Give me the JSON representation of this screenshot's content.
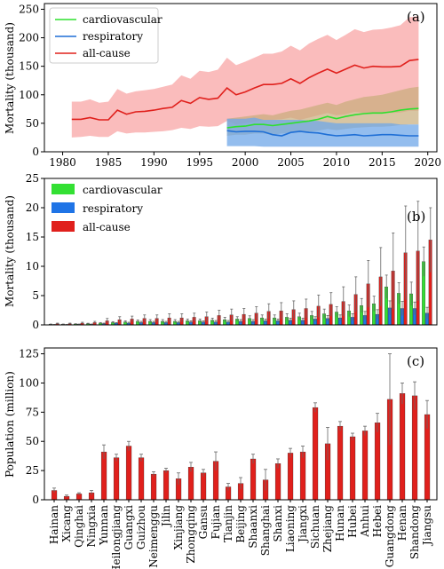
{
  "chart_data": [
    {
      "panel": "(a)",
      "type": "line",
      "ylabel": "Mortality (thousand)",
      "xlim": [
        1978,
        2021
      ],
      "ylim": [
        0,
        260
      ],
      "xticks": [
        1980,
        1985,
        1990,
        1995,
        2000,
        2005,
        2010,
        2015,
        2020
      ],
      "yticks": [
        0,
        50,
        100,
        150,
        200,
        250
      ],
      "legend_position": "top-left",
      "colors": {
        "cardiovascular": "#2ee02e",
        "respiratory": "#1f6fd6",
        "all-cause": "#e0201c",
        "allcause_band": "#f8a5a5",
        "cardio_band": "#c8ad7a",
        "resp_band": "#6fa7e8",
        "overlap_band": "#7a84a0"
      },
      "series": [
        {
          "name": "all-cause",
          "x": [
            1981,
            1982,
            1983,
            1984,
            1985,
            1986,
            1987,
            1988,
            1989,
            1990,
            1991,
            1992,
            1993,
            1994,
            1995,
            1996,
            1997,
            1998,
            1999,
            2000,
            2001,
            2002,
            2003,
            2004,
            2005,
            2006,
            2007,
            2008,
            2009,
            2010,
            2011,
            2012,
            2013,
            2014,
            2015,
            2016,
            2017,
            2018,
            2019
          ],
          "values": [
            57,
            57,
            60,
            56,
            56,
            73,
            66,
            70,
            71,
            73,
            76,
            78,
            90,
            85,
            95,
            92,
            94,
            112,
            100,
            105,
            112,
            118,
            118,
            120,
            128,
            120,
            130,
            138,
            145,
            138,
            145,
            152,
            147,
            150,
            149,
            149,
            150,
            160,
            162
          ],
          "upper": [
            88,
            88,
            92,
            86,
            88,
            110,
            102,
            106,
            108,
            110,
            114,
            118,
            134,
            128,
            142,
            140,
            144,
            165,
            152,
            158,
            165,
            172,
            172,
            176,
            186,
            178,
            190,
            198,
            205,
            196,
            205,
            215,
            210,
            214,
            215,
            218,
            222,
            236,
            238
          ],
          "lower": [
            25,
            26,
            28,
            26,
            26,
            36,
            32,
            34,
            34,
            35,
            36,
            38,
            42,
            40,
            45,
            44,
            45,
            54,
            48,
            50,
            53,
            56,
            56,
            57,
            60,
            56,
            60,
            64,
            68,
            64,
            66,
            70,
            68,
            69,
            68,
            68,
            69,
            72,
            72
          ]
        },
        {
          "name": "cardiovascular",
          "x": [
            1998,
            1999,
            2000,
            2001,
            2002,
            2003,
            2004,
            2005,
            2006,
            2007,
            2008,
            2009,
            2010,
            2011,
            2012,
            2013,
            2014,
            2015,
            2016,
            2017,
            2018,
            2019
          ],
          "values": [
            42,
            44,
            45,
            48,
            48,
            46,
            48,
            50,
            52,
            54,
            57,
            62,
            58,
            62,
            65,
            67,
            68,
            68,
            70,
            73,
            75,
            76
          ],
          "upper": [
            58,
            60,
            62,
            64,
            66,
            64,
            68,
            72,
            74,
            78,
            82,
            86,
            82,
            88,
            92,
            96,
            98,
            100,
            104,
            108,
            112,
            114
          ],
          "lower": [
            28,
            30,
            30,
            32,
            32,
            30,
            32,
            33,
            34,
            35,
            37,
            40,
            38,
            40,
            42,
            43,
            44,
            44,
            45,
            47,
            48,
            48
          ]
        },
        {
          "name": "respiratory",
          "x": [
            1998,
            1999,
            2000,
            2001,
            2002,
            2003,
            2004,
            2005,
            2006,
            2007,
            2008,
            2009,
            2010,
            2011,
            2012,
            2013,
            2014,
            2015,
            2016,
            2017,
            2018,
            2019
          ],
          "values": [
            37,
            35,
            36,
            36,
            35,
            30,
            28,
            34,
            36,
            34,
            33,
            30,
            28,
            29,
            30,
            28,
            29,
            30,
            30,
            29,
            28,
            28
          ],
          "upper": [
            58,
            58,
            58,
            60,
            56,
            56,
            56,
            56,
            56,
            55,
            54,
            52,
            50,
            50,
            50,
            50,
            50,
            50,
            50,
            48,
            48,
            48
          ],
          "lower": [
            10,
            10,
            10,
            10,
            9,
            9,
            9,
            9,
            9,
            9,
            9,
            9,
            9,
            9,
            9,
            9,
            9,
            9,
            9,
            9,
            9,
            9
          ]
        }
      ]
    },
    {
      "panel": "(b)",
      "type": "bar",
      "ylabel": "Mortality (thousand)",
      "ylim": [
        0,
        25
      ],
      "yticks": [
        0,
        5,
        10,
        15,
        20,
        25
      ],
      "legend_position": "top-left",
      "categories": [
        "Hainan",
        "Xicang",
        "Qinghai",
        "Ningxia",
        "Yunnan",
        "Heilongjiang",
        "Guangxi",
        "Guizhou",
        "Neimenggu",
        "Jilin",
        "Xinjiang",
        "Zhongqing",
        "Gansu",
        "Fujian",
        "Tianjin",
        "Beijing",
        "Shaanxi",
        "Shanghai",
        "Shanxi",
        "Liaoning",
        "Jiangxi",
        "Sichuan",
        "Zhejiang",
        "Hunan",
        "Hubei",
        "Anhui",
        "Hebei",
        "Guangdong",
        "Henan",
        "Shandong",
        "Jiangsu"
      ],
      "series": [
        {
          "name": "cardiovascular",
          "values": [
            0.1,
            0.1,
            0.15,
            0.2,
            0.3,
            0.4,
            0.5,
            0.6,
            0.6,
            0.6,
            0.6,
            0.7,
            0.7,
            0.8,
            0.9,
            1.0,
            1.1,
            1.2,
            1.2,
            1.3,
            1.4,
            1.6,
            1.9,
            2.2,
            2.4,
            3.3,
            3.6,
            6.5,
            5.4,
            5.3,
            10.8
          ],
          "errors": [
            0.05,
            0.05,
            0.05,
            0.08,
            0.1,
            0.15,
            0.2,
            0.25,
            0.3,
            0.3,
            0.3,
            0.3,
            0.3,
            0.35,
            0.4,
            0.4,
            0.45,
            0.5,
            0.5,
            0.6,
            0.6,
            0.7,
            0.8,
            0.9,
            1.0,
            1.2,
            1.3,
            2.0,
            1.8,
            2.0,
            2.5
          ]
        },
        {
          "name": "respiratory",
          "values": [
            0.05,
            0.05,
            0.1,
            0.1,
            0.2,
            0.3,
            0.3,
            0.4,
            0.4,
            0.4,
            0.4,
            0.5,
            0.5,
            0.5,
            0.5,
            0.6,
            0.6,
            0.7,
            0.7,
            0.8,
            0.8,
            1.0,
            1.1,
            1.2,
            1.3,
            1.6,
            1.8,
            2.9,
            2.8,
            2.8,
            2.0
          ],
          "errors": [
            0.03,
            0.03,
            0.05,
            0.05,
            0.1,
            0.1,
            0.15,
            0.2,
            0.2,
            0.2,
            0.2,
            0.2,
            0.2,
            0.25,
            0.25,
            0.3,
            0.3,
            0.3,
            0.3,
            0.35,
            0.35,
            0.4,
            0.5,
            0.5,
            0.6,
            0.7,
            0.8,
            1.2,
            1.2,
            1.1,
            1.0
          ]
        },
        {
          "name": "all-cause",
          "values": [
            0.2,
            0.2,
            0.3,
            0.4,
            0.7,
            0.9,
            1.0,
            1.1,
            1.1,
            1.2,
            1.2,
            1.3,
            1.4,
            1.6,
            1.7,
            1.8,
            2.0,
            2.3,
            2.4,
            2.6,
            2.8,
            3.2,
            3.5,
            4.0,
            5.2,
            7.0,
            8.2,
            9.2,
            12.3,
            12.6,
            14.5
          ],
          "errors": [
            0.1,
            0.1,
            0.15,
            0.2,
            0.4,
            0.5,
            0.5,
            0.6,
            0.6,
            0.7,
            0.7,
            0.7,
            0.8,
            0.9,
            1.0,
            1.0,
            1.1,
            1.3,
            1.4,
            1.5,
            1.6,
            1.9,
            2.0,
            2.5,
            3.0,
            4.0,
            5.0,
            6.5,
            8.0,
            8.5,
            5.5
          ]
        }
      ]
    },
    {
      "panel": "(c)",
      "type": "bar",
      "ylabel": "Population (million)",
      "ylim": [
        0,
        130
      ],
      "yticks": [
        0,
        25,
        50,
        75,
        100,
        125
      ],
      "color": "#e0201c",
      "categories": [
        "Hainan",
        "Xicang",
        "Qinghai",
        "Ningxia",
        "Yunnan",
        "Heilongjiang",
        "Guangxi",
        "Guizhou",
        "Neimenggu",
        "Jilin",
        "Xinjiang",
        "Zhongqing",
        "Gansu",
        "Fujian",
        "Tianjin",
        "Beijing",
        "Shaanxi",
        "Shanghai",
        "Shanxi",
        "Liaoning",
        "Jiangxi",
        "Sichuan",
        "Zhejiang",
        "Hunan",
        "Hubei",
        "Anhui",
        "Hebei",
        "Guangdong",
        "Henan",
        "Shandong",
        "Jiangsu"
      ],
      "values": [
        8,
        3,
        5,
        6,
        41,
        36,
        46,
        36,
        22,
        25,
        18,
        28,
        23,
        33,
        11,
        14,
        35,
        17,
        31,
        40,
        41,
        79,
        48,
        63,
        54,
        59,
        66,
        86,
        91,
        89,
        73
      ],
      "errors": [
        2,
        1,
        1,
        2,
        6,
        3,
        4,
        3,
        2,
        2,
        5,
        4,
        3,
        8,
        3,
        5,
        4,
        9,
        4,
        4,
        5,
        4,
        14,
        4,
        3,
        4,
        8,
        39,
        9,
        12,
        12
      ]
    }
  ]
}
